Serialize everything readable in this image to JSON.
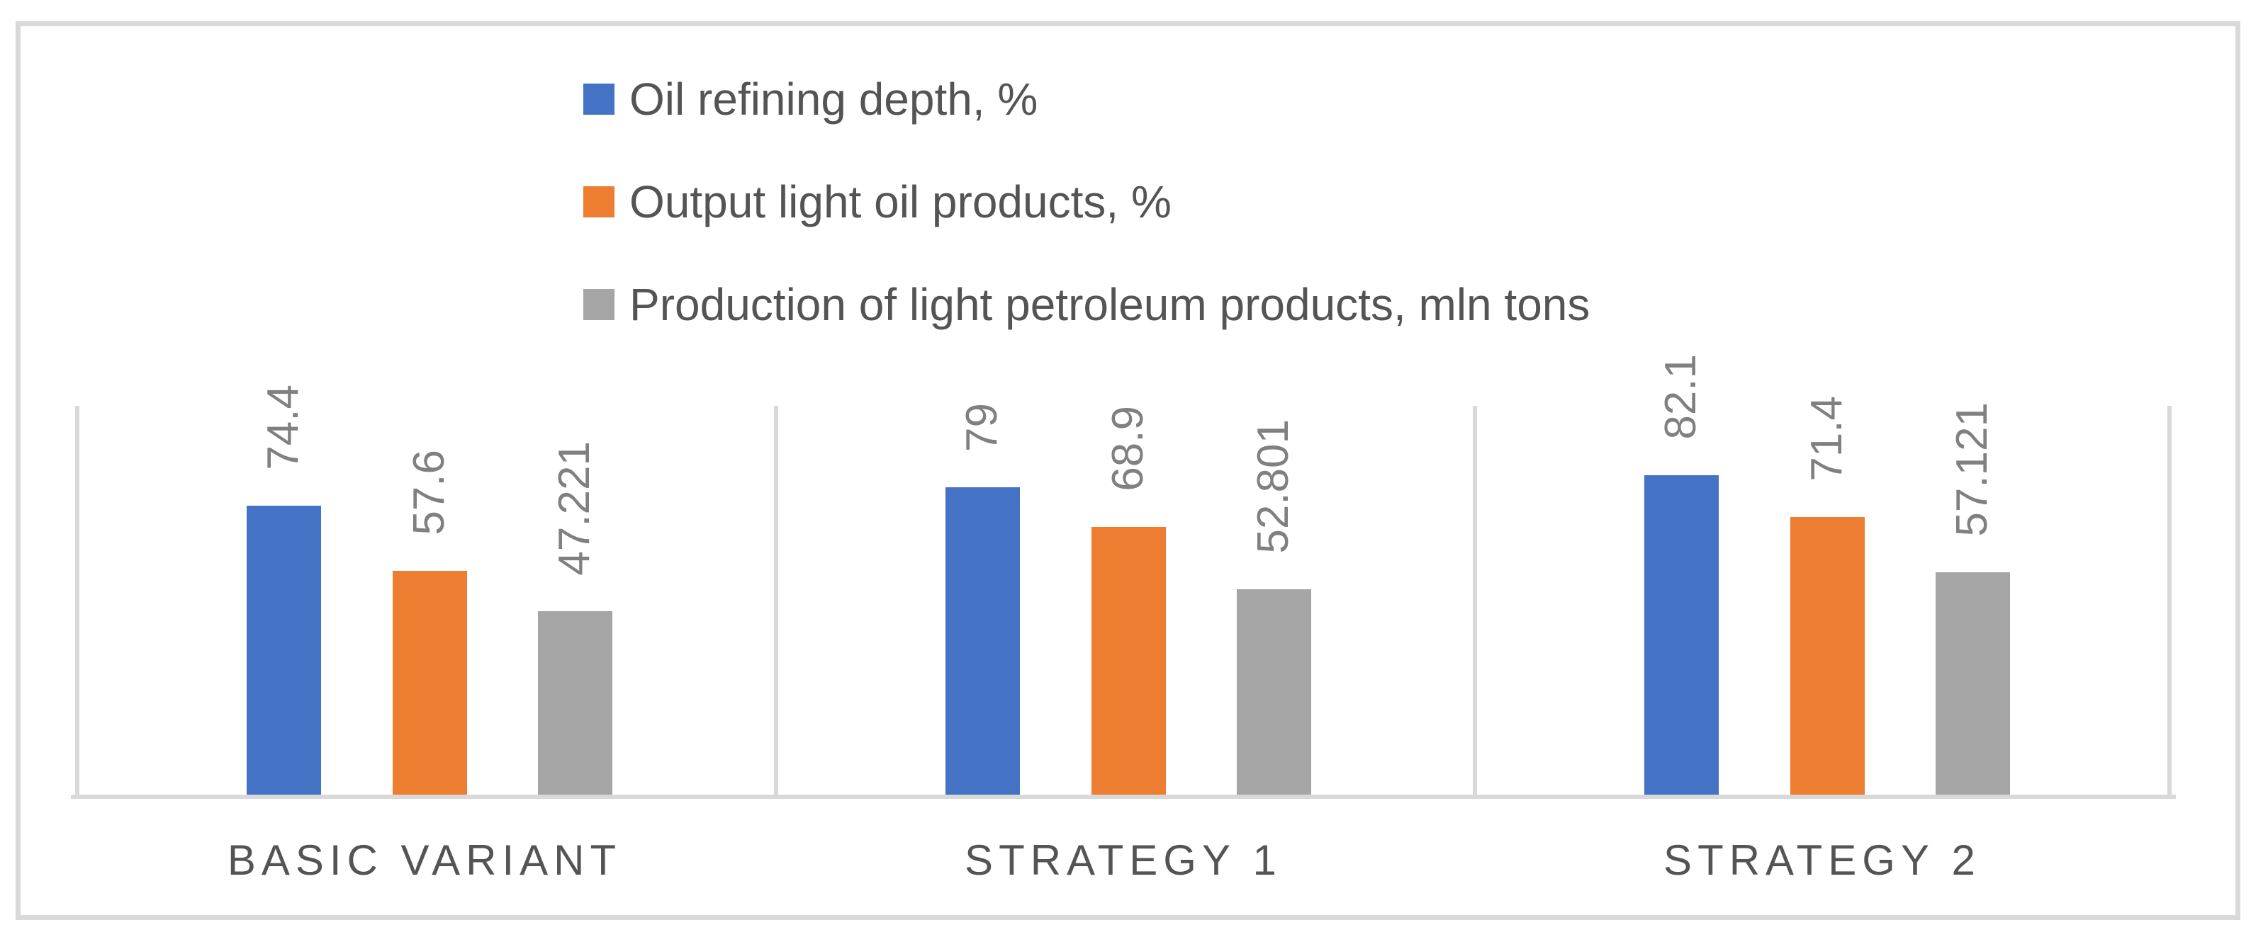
{
  "chart_data": {
    "type": "bar",
    "title": "",
    "xlabel": "",
    "ylabel": "",
    "categories": [
      "BASIC VARIANT",
      "STRATEGY 1",
      "STRATEGY 2"
    ],
    "series": [
      {
        "name": "Oil refining depth, %",
        "color": "#4472C4",
        "values": [
          74.4,
          79,
          82.1
        ],
        "labels": [
          "74.4",
          "79",
          "82.1"
        ]
      },
      {
        "name": "Output light oil products, %",
        "color": "#ED7D31",
        "values": [
          57.6,
          68.9,
          71.4
        ],
        "labels": [
          "57.6",
          "68.9",
          "71.4"
        ]
      },
      {
        "name": "Production of light petroleum products, mln tons",
        "color": "#A5A5A5",
        "values": [
          47.221,
          52.801,
          57.121
        ],
        "labels": [
          "47.221",
          "52.801",
          "57.121"
        ]
      }
    ],
    "ylim": [
      0,
      100
    ],
    "grid": "vertical-category-boundary-lines",
    "legend_position": "top-stacked",
    "data_label_rotation": -90
  },
  "styles": {
    "frame_border_color": "#D9D9D9",
    "axis_line_color": "#D9D9D9",
    "separator_color": "#D9D9D9",
    "legend_text_color": "#545454",
    "category_text_color": "#545454",
    "data_label_color": "#808080",
    "background": "#FFFFFF"
  }
}
